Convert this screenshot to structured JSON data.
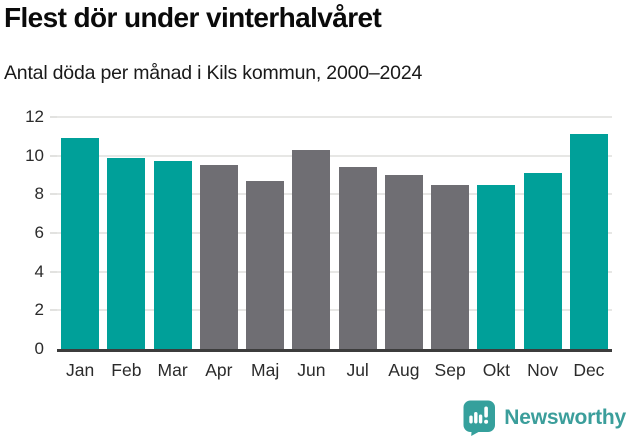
{
  "header": {
    "title": "Flest dör under vinterhalvåret",
    "subtitle": "Antal döda per månad i Kils kommun, 2000–2024"
  },
  "chart_data": {
    "type": "bar",
    "title": "Flest dör under vinterhalvåret",
    "subtitle": "Antal döda per månad i Kils kommun, 2000–2024",
    "categories": [
      "Jan",
      "Feb",
      "Mar",
      "Apr",
      "Maj",
      "Jun",
      "Jul",
      "Aug",
      "Sep",
      "Okt",
      "Nov",
      "Dec"
    ],
    "values": [
      10.9,
      9.9,
      9.7,
      9.5,
      8.7,
      10.3,
      9.4,
      9.0,
      8.5,
      8.5,
      9.1,
      11.1
    ],
    "highlighted": [
      true,
      true,
      true,
      false,
      false,
      false,
      false,
      false,
      false,
      true,
      true,
      true
    ],
    "xlabel": "",
    "ylabel": "",
    "ylim": [
      0,
      12
    ],
    "yticks": [
      0,
      2,
      4,
      6,
      8,
      10,
      12
    ],
    "grid": true,
    "legend_position": "none",
    "colors": {
      "highlight": "#00a099",
      "default": "#6f6e73",
      "gridline": "#e7e7e5",
      "baseline": "#3c3c3c"
    }
  },
  "footer": {
    "brand": "Newsworthy",
    "brand_color": "#3b9e9b"
  }
}
